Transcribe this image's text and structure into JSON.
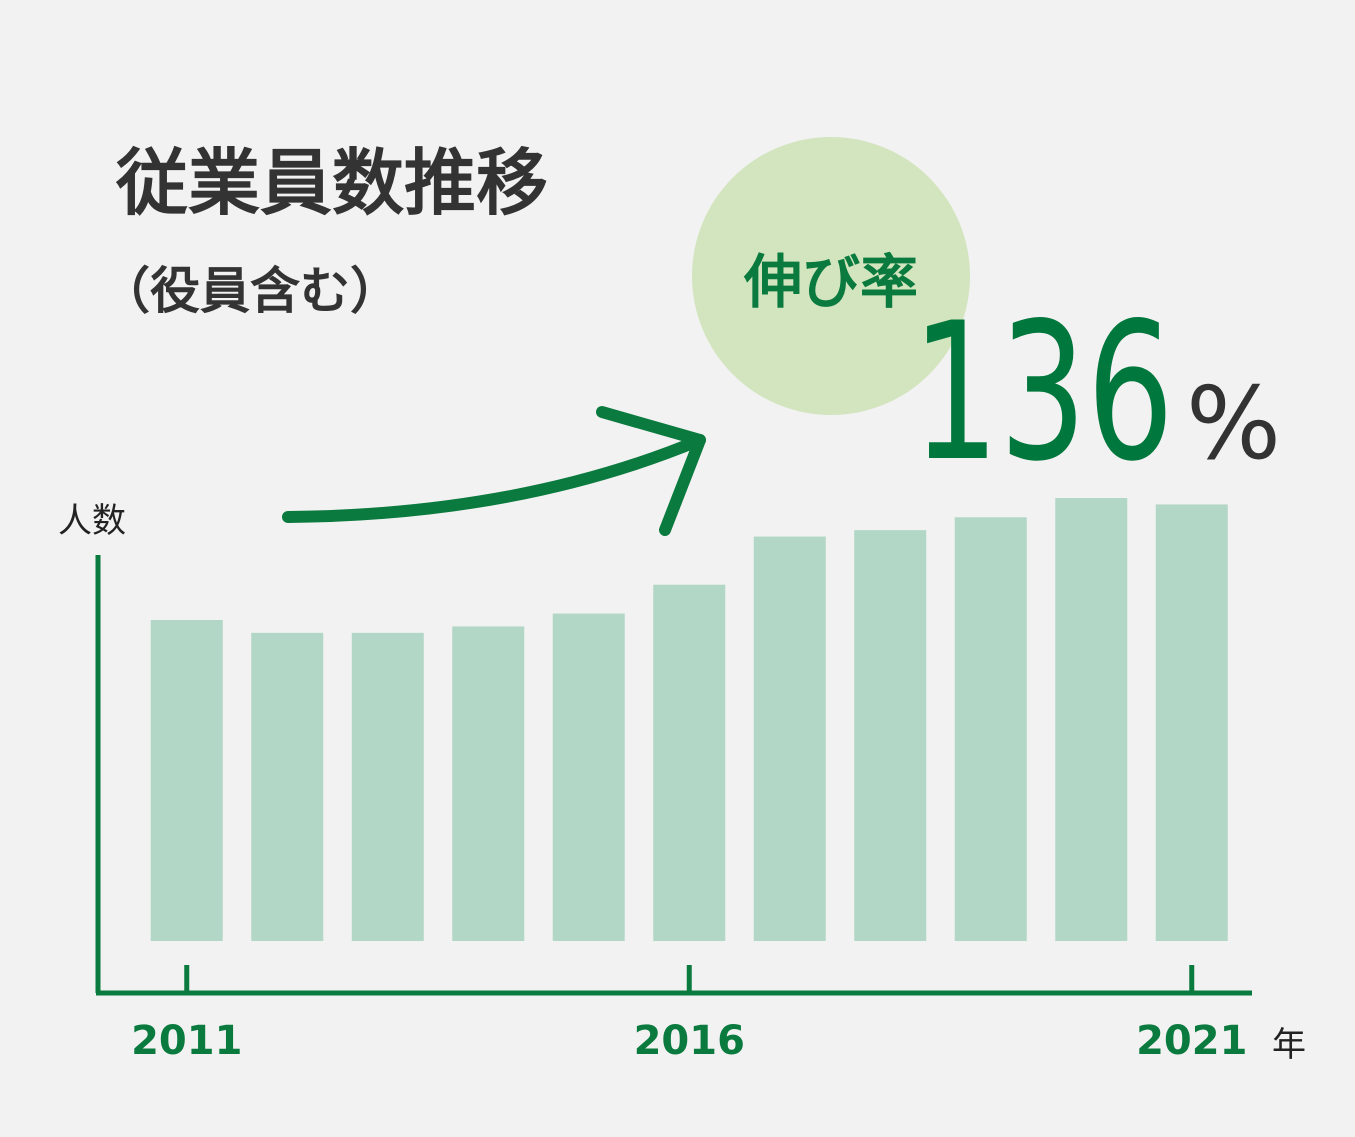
{
  "chart_data": {
    "type": "bar",
    "title": "従業員数推移",
    "subtitle": "（役員含む）",
    "y_label": "人数",
    "x_label": "年",
    "categories": [
      "2011",
      null,
      null,
      null,
      null,
      "2016",
      null,
      null,
      null,
      null,
      "2021"
    ],
    "values": [
      100,
      96,
      96,
      98,
      102,
      111,
      126,
      128,
      132,
      138,
      136
    ],
    "color": "#b3d7c6",
    "ylim": [
      0,
      140
    ],
    "growth": {
      "label": "伸び率",
      "value": 136,
      "unit": "%"
    }
  }
}
